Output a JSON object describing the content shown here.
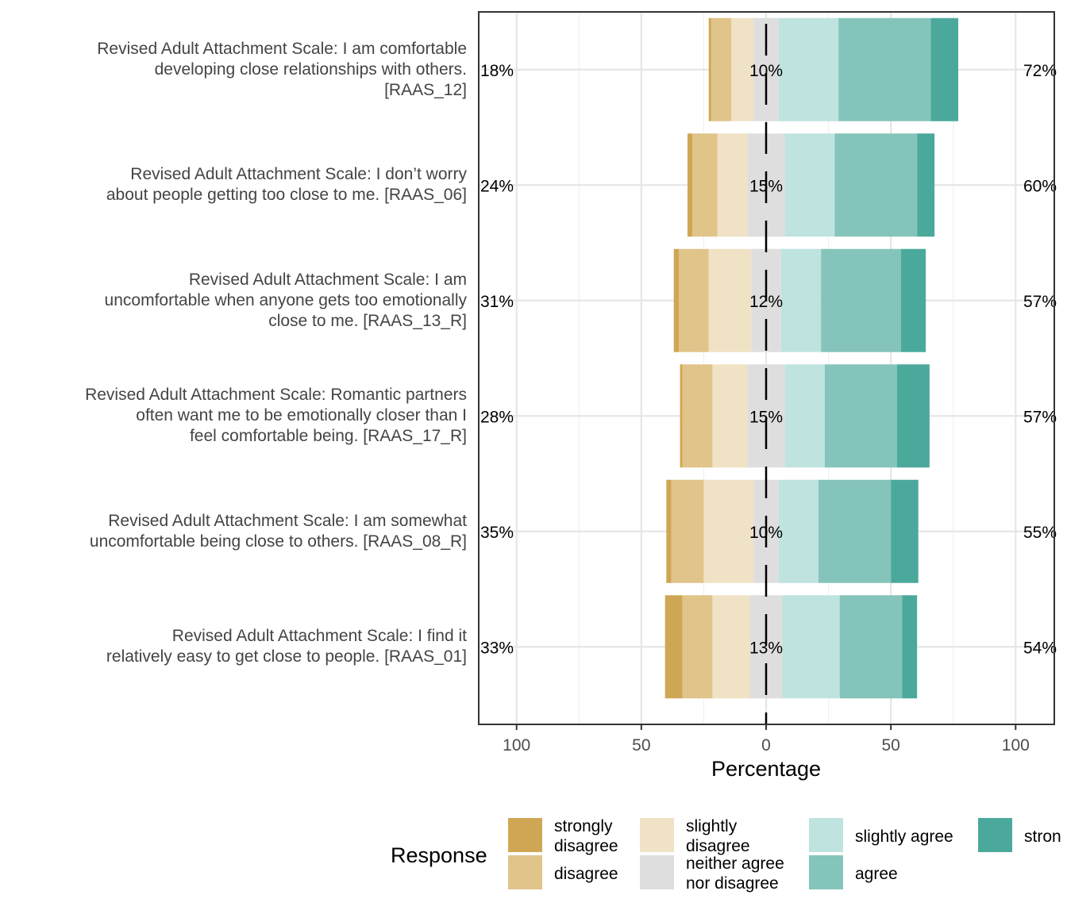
{
  "chart_data": {
    "type": "bar",
    "subtype": "diverging-stacked-likert",
    "xlabel": "Percentage",
    "xlim": [
      -100,
      100
    ],
    "xticks": [
      -100,
      -50,
      0,
      50,
      100
    ],
    "xtick_labels": [
      "100",
      "50",
      "0",
      "50",
      "100"
    ],
    "legend_title": "Response",
    "legend_position": "bottom",
    "levels": [
      {
        "key": "strongly_disagree",
        "label": "strongly disagree",
        "lines": [
          "strongly",
          "disagree"
        ],
        "color": "#CFA754"
      },
      {
        "key": "disagree",
        "label": "disagree",
        "lines": [
          "disagree"
        ],
        "color": "#E0C48A"
      },
      {
        "key": "slightly_disagree",
        "label": "slightly disagree",
        "lines": [
          "slightly",
          "disagree"
        ],
        "color": "#F0E2C4"
      },
      {
        "key": "neither",
        "label": "neither agree nor disagree",
        "lines": [
          "neither agree",
          "nor disagree"
        ],
        "color": "#DEDEDE"
      },
      {
        "key": "slightly_agree",
        "label": "slightly agree",
        "lines": [
          "slightly agree"
        ],
        "color": "#BFE3DF"
      },
      {
        "key": "agree",
        "label": "agree",
        "lines": [
          "agree"
        ],
        "color": "#85C4BA"
      },
      {
        "key": "strongly_agree",
        "label": "strongly agree",
        "lines": [
          "stron"
        ],
        "color": "#4BA99C"
      }
    ],
    "items": [
      {
        "label_lines": [
          "Revised Adult Attachment Scale: I am comfortable",
          "developing close relationships with others.",
          "[RAAS_12]"
        ],
        "values": [
          1,
          8,
          9,
          10,
          24,
          37,
          11
        ],
        "low_label": "18%",
        "mid_label": "10%",
        "high_label": "72%"
      },
      {
        "label_lines": [
          "Revised Adult Attachment Scale: I don’t worry",
          "about people getting too close to me. [RAAS_06]"
        ],
        "values": [
          2,
          10,
          12,
          15,
          20,
          33,
          7
        ],
        "low_label": "24%",
        "mid_label": "15%",
        "high_label": "60%"
      },
      {
        "label_lines": [
          "Revised Adult Attachment Scale: I am",
          "uncomfortable when anyone gets too emotionally",
          "close to me. [RAAS_13_R]"
        ],
        "values": [
          2,
          12,
          17,
          12,
          16,
          32,
          10
        ],
        "low_label": "31%",
        "mid_label": "12%",
        "high_label": "57%"
      },
      {
        "label_lines": [
          "Revised Adult Attachment Scale: Romantic partners",
          "often want me to be emotionally closer than I",
          "feel comfortable being. [RAAS_17_R]"
        ],
        "values": [
          1,
          12,
          14,
          15,
          16,
          29,
          13
        ],
        "low_label": "28%",
        "mid_label": "15%",
        "high_label": "57%"
      },
      {
        "label_lines": [
          "Revised Adult Attachment Scale: I am somewhat",
          "uncomfortable being close to others. [RAAS_08_R]"
        ],
        "values": [
          2,
          13,
          20,
          10,
          16,
          29,
          11
        ],
        "low_label": "35%",
        "mid_label": "10%",
        "high_label": "55%"
      },
      {
        "label_lines": [
          "Revised Adult Attachment Scale: I find it",
          "relatively easy to get close to people. [RAAS_01]"
        ],
        "values": [
          7,
          12,
          15,
          13,
          23,
          25,
          6
        ],
        "low_label": "33%",
        "mid_label": "13%",
        "high_label": "54%"
      }
    ]
  }
}
